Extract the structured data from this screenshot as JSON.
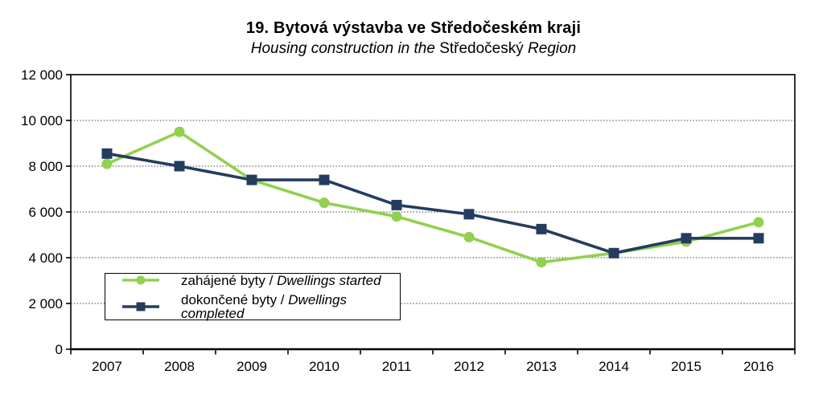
{
  "header": {
    "title": "19. Bytová výstavba ve Středočeském kraji",
    "subtitle_italic_1": "Housing construction in the",
    "subtitle_roman": "Středočeský",
    "subtitle_italic_2": "Region"
  },
  "chart_data": {
    "type": "line",
    "categories": [
      "2007",
      "2008",
      "2009",
      "2010",
      "2011",
      "2012",
      "2013",
      "2014",
      "2015",
      "2016"
    ],
    "series": [
      {
        "name_cs": "zahájené byty /",
        "name_en": "Dwellings started",
        "marker": "circle",
        "color": "#92D050",
        "values": [
          8100,
          9500,
          7400,
          6400,
          5800,
          4900,
          3800,
          4200,
          4700,
          5550
        ]
      },
      {
        "name_cs": "dokončené byty /",
        "name_en": "Dwellings completed",
        "marker": "square",
        "color": "#243C5F",
        "values": [
          8550,
          8000,
          7400,
          7400,
          6300,
          5900,
          5250,
          4200,
          4850,
          4850
        ]
      }
    ],
    "ylim": [
      0,
      12000
    ],
    "y_tick_step": 2000,
    "y_tick_labels": [
      "0",
      "2 000",
      "4 000",
      "6 000",
      "8 000",
      "10 000",
      "12 000"
    ],
    "grid": "horizontal-dotted",
    "legend_position": "inside-lower-left",
    "axis_color": "#000000",
    "grid_color": "#404040"
  }
}
